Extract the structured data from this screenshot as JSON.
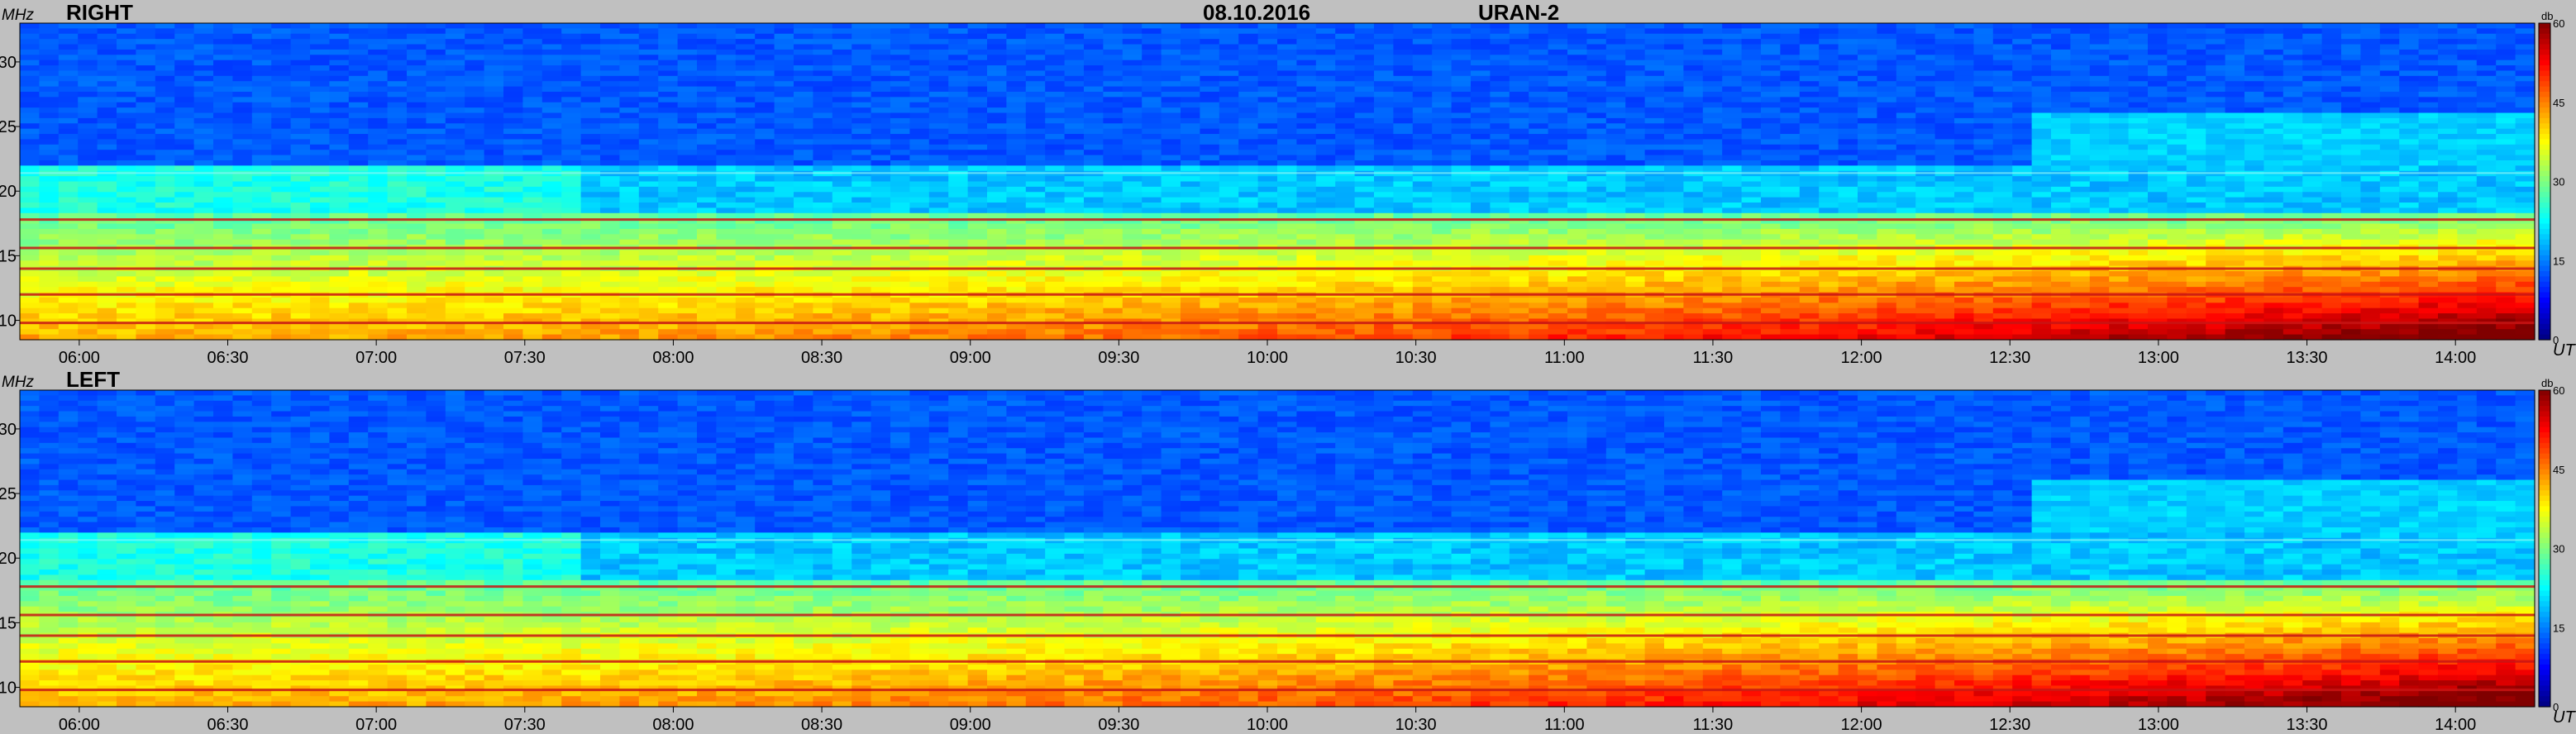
{
  "header": {
    "date": "08.10.2016",
    "instrument": "URAN-2"
  },
  "chart_data": [
    {
      "type": "heatmap",
      "title": "RIGHT",
      "ylabel": "MHz",
      "xlabel": "UT",
      "ylim": [
        8.5,
        33
      ],
      "yticks": [
        10,
        15,
        20,
        25,
        30
      ],
      "xticks": [
        "06:00",
        "06:30",
        "07:00",
        "07:30",
        "08:00",
        "08:30",
        "09:00",
        "09:30",
        "10:00",
        "10:30",
        "11:00",
        "11:30",
        "12:00",
        "12:30",
        "13:00",
        "13:30",
        "14:00"
      ],
      "colorbar": {
        "label": "db",
        "range": [
          0,
          60
        ],
        "ticks": [
          0,
          15,
          30,
          45,
          60
        ]
      },
      "bands_mhz": [
        9.8,
        12.0,
        14.0,
        15.6,
        17.8,
        21.4
      ]
    },
    {
      "type": "heatmap",
      "title": "LEFT",
      "ylabel": "MHz",
      "xlabel": "UT",
      "ylim": [
        8.5,
        33
      ],
      "yticks": [
        10,
        15,
        20,
        25,
        30
      ],
      "xticks": [
        "06:00",
        "06:30",
        "07:00",
        "07:30",
        "08:00",
        "08:30",
        "09:00",
        "09:30",
        "10:00",
        "10:30",
        "11:00",
        "11:30",
        "12:00",
        "12:30",
        "13:00",
        "13:30",
        "14:00"
      ],
      "colorbar": {
        "label": "db",
        "range": [
          0,
          60
        ],
        "ticks": [
          0,
          15,
          30,
          45,
          60
        ]
      },
      "bands_mhz": [
        9.8,
        12.0,
        14.0,
        15.6,
        17.8,
        21.4
      ]
    }
  ]
}
